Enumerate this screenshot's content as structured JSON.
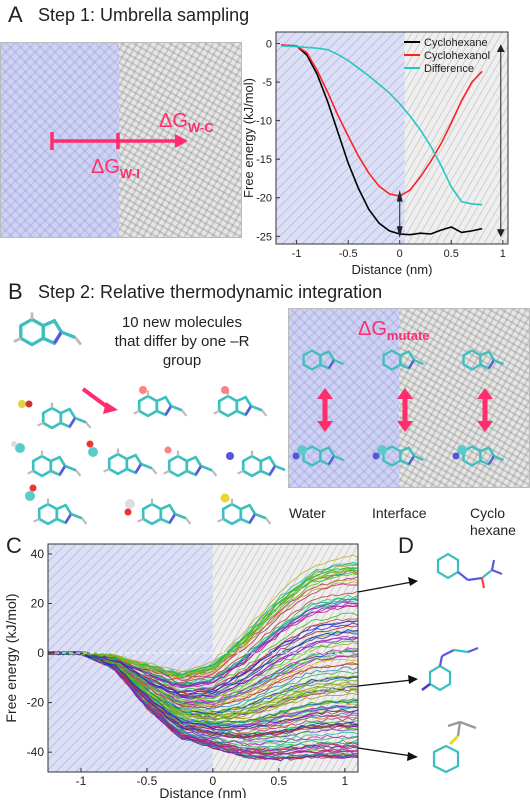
{
  "panel_a": {
    "letter": "A",
    "title": "Step 1: Umbrella sampling",
    "dg_wc_main": "ΔG",
    "dg_wc_sub": "W-C",
    "dg_wi_main": "ΔG",
    "dg_wi_sub": "W-I"
  },
  "panel_b": {
    "letter": "B",
    "title": "Step 2: Relative thermodynamic integration",
    "caption": "10 new molecules that differ by one –R group",
    "dg_mutate_main": "ΔG",
    "dg_mutate_sub": "mutate",
    "phases": [
      "Water",
      "Interface",
      "Cyclo hexane"
    ]
  },
  "panel_c": {
    "letter": "C"
  },
  "panel_d": {
    "letter": "D"
  },
  "colors": {
    "accent": "#ff2d6e",
    "cyclohexane": "#000000",
    "cyclohexanol": "#ff2020",
    "difference": "#29c4c4"
  },
  "chart_data": [
    {
      "id": "panel-a-chart",
      "type": "line",
      "xlabel": "Distance (nm)",
      "ylabel": "Free energy (kJ/mol)",
      "xlim": [
        -1.2,
        1.05
      ],
      "ylim": [
        -26,
        1.5
      ],
      "xticks": [
        -1,
        -0.5,
        0,
        0.5,
        1
      ],
      "yticks": [
        0,
        -5,
        -10,
        -15,
        -20,
        -25
      ],
      "legend_position": "top-right",
      "series": [
        {
          "name": "Cyclohexane",
          "color": "#000000",
          "x": [
            -1.15,
            -1.0,
            -0.9,
            -0.8,
            -0.7,
            -0.6,
            -0.5,
            -0.4,
            -0.3,
            -0.2,
            -0.1,
            0.0,
            0.1,
            0.2,
            0.3,
            0.4,
            0.5,
            0.6,
            0.7,
            0.8
          ],
          "y": [
            -0.2,
            -0.3,
            -1.5,
            -4.0,
            -7.5,
            -11.5,
            -15.5,
            -18.8,
            -21.5,
            -23.3,
            -24.3,
            -24.7,
            -24.8,
            -24.6,
            -24.7,
            -24.2,
            -23.8,
            -24.5,
            -24.3,
            -24.0
          ]
        },
        {
          "name": "Cyclohexanol",
          "color": "#ff2020",
          "x": [
            -1.15,
            -1.0,
            -0.9,
            -0.8,
            -0.7,
            -0.6,
            -0.5,
            -0.4,
            -0.3,
            -0.2,
            -0.1,
            0.0,
            0.1,
            0.2,
            0.3,
            0.4,
            0.5,
            0.6,
            0.7,
            0.8
          ],
          "y": [
            -0.2,
            -0.3,
            -1.2,
            -3.5,
            -6.3,
            -9.3,
            -12.0,
            -14.6,
            -16.8,
            -18.5,
            -19.5,
            -19.8,
            -19.0,
            -17.3,
            -15.3,
            -13.0,
            -10.3,
            -7.4,
            -5.0,
            -3.6
          ]
        },
        {
          "name": "Difference",
          "color": "#29c4c4",
          "x": [
            -1.15,
            -1.0,
            -0.9,
            -0.8,
            -0.7,
            -0.6,
            -0.5,
            -0.4,
            -0.3,
            -0.2,
            -0.1,
            0.0,
            0.1,
            0.2,
            0.3,
            0.4,
            0.5,
            0.6,
            0.7,
            0.8
          ],
          "y": [
            -0.3,
            -0.4,
            -0.5,
            -0.6,
            -0.8,
            -1.4,
            -2.2,
            -3.2,
            -4.2,
            -5.3,
            -6.4,
            -7.8,
            -9.4,
            -11.2,
            -13.3,
            -15.8,
            -18.6,
            -20.5,
            -20.8,
            -20.9
          ]
        }
      ],
      "annotation": "double-headed arrow spanning y = -25 to 0 at x ≈ 1.0"
    },
    {
      "id": "panel-c-chart",
      "type": "line",
      "xlabel": "Distance (nm)",
      "ylabel": "Free energy (kJ/mol)",
      "xlim": [
        -1.25,
        1.1
      ],
      "ylim": [
        -48,
        44
      ],
      "xticks": [
        -1,
        -0.5,
        0,
        0.5,
        1
      ],
      "yticks": [
        40,
        20,
        0,
        -20,
        -40
      ],
      "series_count": 400,
      "envelope": {
        "x": [
          -1.25,
          -1.0,
          -0.75,
          -0.5,
          -0.25,
          0.0,
          0.25,
          0.5,
          0.75,
          1.0,
          1.1
        ],
        "upper": [
          0,
          0,
          -1,
          -4,
          -7,
          -3,
          10,
          25,
          36,
          40,
          40
        ],
        "lower": [
          0,
          0,
          -6,
          -22,
          -34,
          -38,
          -42,
          -43,
          -42,
          -42,
          -42
        ]
      },
      "reference_line_y": 0
    }
  ]
}
